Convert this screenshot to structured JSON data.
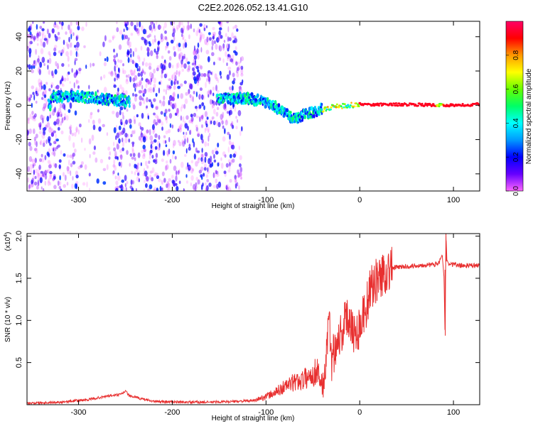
{
  "title": "C2E2.2026.052.13.41.G10",
  "chart_data": [
    {
      "type": "heatmap",
      "xlabel": "Height of straight line (km)",
      "ylabel": "Frequency (Hz)",
      "xlim": [
        -355,
        128
      ],
      "ylim": [
        -50,
        49
      ],
      "x_ticks": [
        -300,
        -200,
        -100,
        0,
        100
      ],
      "y_ticks": [
        -40,
        -20,
        0,
        20,
        40
      ],
      "colorbar": {
        "label": "Normalized spectral amplitude",
        "ticks": [
          0.0,
          0.2,
          0.4,
          0.6,
          0.8
        ],
        "range": [
          0,
          1
        ],
        "colors": [
          "#ff66ff",
          "#6600ff",
          "#0000ff",
          "#0099ff",
          "#00ffff",
          "#00ff66",
          "#66ff00",
          "#ffff00",
          "#ff9900",
          "#ff0000",
          "#ff0066"
        ]
      },
      "ridge": [
        {
          "x": -330,
          "f": 5
        },
        {
          "x": -300,
          "f": 5
        },
        {
          "x": -260,
          "f": 3
        },
        {
          "x": -245,
          "f": 2
        },
        {
          "x": -150,
          "f": 4
        },
        {
          "x": -120,
          "f": 4
        },
        {
          "x": -100,
          "f": 2
        },
        {
          "x": -80,
          "f": -4
        },
        {
          "x": -70,
          "f": -8
        },
        {
          "x": -60,
          "f": -6
        },
        {
          "x": -45,
          "f": -3
        },
        {
          "x": -30,
          "f": -1
        },
        {
          "x": -15,
          "f": 0
        },
        {
          "x": 0,
          "f": 0.5
        },
        {
          "x": 50,
          "f": 0.5
        },
        {
          "x": 85,
          "f": 0
        },
        {
          "x": 128,
          "f": 0.5
        }
      ]
    },
    {
      "type": "line",
      "xlabel": "Height of straight line (km)",
      "ylabel": "SNR (10 * v/v)",
      "y_multiplier": "(x10",
      "y_multiplier_exp": "4",
      "xlim": [
        -355,
        128
      ],
      "ylim": [
        0,
        2.03
      ],
      "x_ticks": [
        -300,
        -200,
        -100,
        0,
        100
      ],
      "y_ticks": [
        0.5,
        1.0,
        1.5,
        2.0
      ],
      "y_tick_labels": [
        "0.5",
        "1.0",
        "1.5",
        "2.0"
      ],
      "color": "#e83030",
      "series": [
        {
          "x": [
            -355,
            -320,
            -290,
            -270,
            -255,
            -250,
            -245,
            -220,
            -190,
            -160,
            -130,
            -110,
            -100,
            -90,
            -80,
            -70,
            -60,
            -50,
            -45,
            -40,
            -36,
            -33,
            -30,
            -25,
            -20,
            -15,
            -10,
            -5,
            0,
            5,
            10,
            15,
            20,
            25,
            30,
            35,
            40,
            50,
            60,
            70,
            80,
            85,
            88,
            90,
            91,
            92,
            93,
            95,
            100,
            110,
            128
          ],
          "y": [
            0.02,
            0.03,
            0.06,
            0.1,
            0.12,
            0.16,
            0.1,
            0.04,
            0.03,
            0.03,
            0.04,
            0.05,
            0.08,
            0.12,
            0.18,
            0.22,
            0.25,
            0.3,
            0.35,
            0.2,
            0.5,
            1.0,
            0.55,
            0.75,
            0.85,
            1.0,
            1.05,
            0.8,
            0.95,
            1.1,
            1.3,
            1.45,
            1.5,
            1.55,
            1.6,
            1.62,
            1.63,
            1.64,
            1.65,
            1.66,
            1.66,
            1.7,
            1.78,
            1.5,
            0.82,
            2.03,
            1.72,
            1.67,
            1.66,
            1.65,
            1.65
          ]
        }
      ]
    }
  ]
}
